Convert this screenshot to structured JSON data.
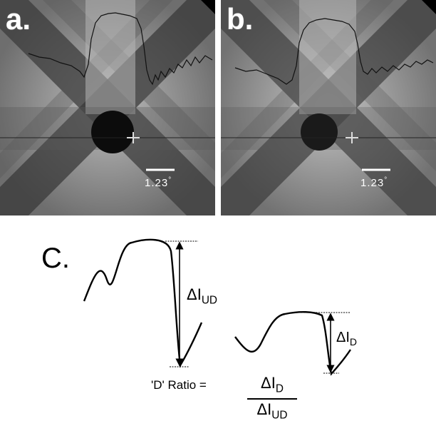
{
  "panels": [
    {
      "id": "a",
      "label": "a.",
      "scale_label": "1.23",
      "scale_unit": "°"
    },
    {
      "id": "b",
      "label": "b.",
      "scale_label": "1.23",
      "scale_unit": "°"
    }
  ],
  "diagram": {
    "label": "C.",
    "delta_large": "ΔI",
    "delta_large_sub": "UD",
    "delta_small": "ΔI",
    "delta_small_sub": "D",
    "ratio_label": "'D' Ratio =",
    "ratio_num": "ΔI",
    "ratio_num_sub": "D",
    "ratio_den": "ΔI",
    "ratio_den_sub": "UD"
  }
}
